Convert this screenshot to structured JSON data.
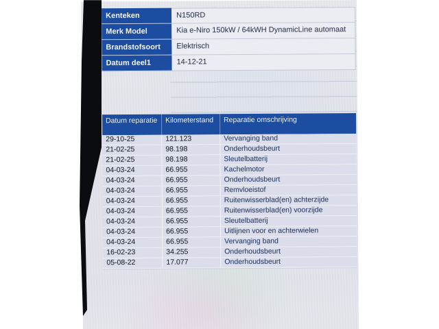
{
  "page": {
    "accent_blue": "#1c4da0",
    "screen_bg": "#e2e3e9",
    "margin_bg": "#ffffff"
  },
  "vehicle_info": {
    "rows": [
      {
        "label": "Kenteken",
        "value": "N150RD"
      },
      {
        "label": "Merk Model",
        "value": "Kia e-Niro 150kW / 64kWH DynamicLine automaat"
      },
      {
        "label": "Brandstofsoort",
        "value": "Elektrisch"
      },
      {
        "label": "Datum deel1",
        "value": "14-12-21"
      }
    ]
  },
  "repairs_table": {
    "columns": [
      "Datum reparatie",
      "Kilometerstand",
      "Reparatie omschrijving"
    ],
    "rows": [
      {
        "datum": "29-10-25",
        "km": "121.123",
        "omschrijving": "Vervanging band"
      },
      {
        "datum": "21-02-25",
        "km": "98.198",
        "omschrijving": "Onderhoudsbeurt"
      },
      {
        "datum": "21-02-25",
        "km": "98.198",
        "omschrijving": "Sleutelbatterij"
      },
      {
        "datum": "04-03-24",
        "km": "66.955",
        "omschrijving": "Kachelmotor"
      },
      {
        "datum": "04-03-24",
        "km": "66.955",
        "omschrijving": "Onderhoudsbeurt"
      },
      {
        "datum": "04-03-24",
        "km": "66.955",
        "omschrijving": "Remvloeistof"
      },
      {
        "datum": "04-03-24",
        "km": "66.955",
        "omschrijving": "Ruitenwisserblad(en) achterzijde"
      },
      {
        "datum": "04-03-24",
        "km": "66.955",
        "omschrijving": "Ruitenwisserblad(en) voorzijde"
      },
      {
        "datum": "04-03-24",
        "km": "66.955",
        "omschrijving": "Sleutelbatterij"
      },
      {
        "datum": "04-03-24",
        "km": "66.955",
        "omschrijving": "Uitlijnen voor en achterwielen"
      },
      {
        "datum": "04-03-24",
        "km": "66.955",
        "omschrijving": "Vervanging band"
      },
      {
        "datum": "16-02-23",
        "km": "34.255",
        "omschrijving": "Onderhoudsbeurt"
      },
      {
        "datum": "05-08-22",
        "km": "17.077",
        "omschrijving": "Onderhoudsbeurt"
      }
    ]
  }
}
